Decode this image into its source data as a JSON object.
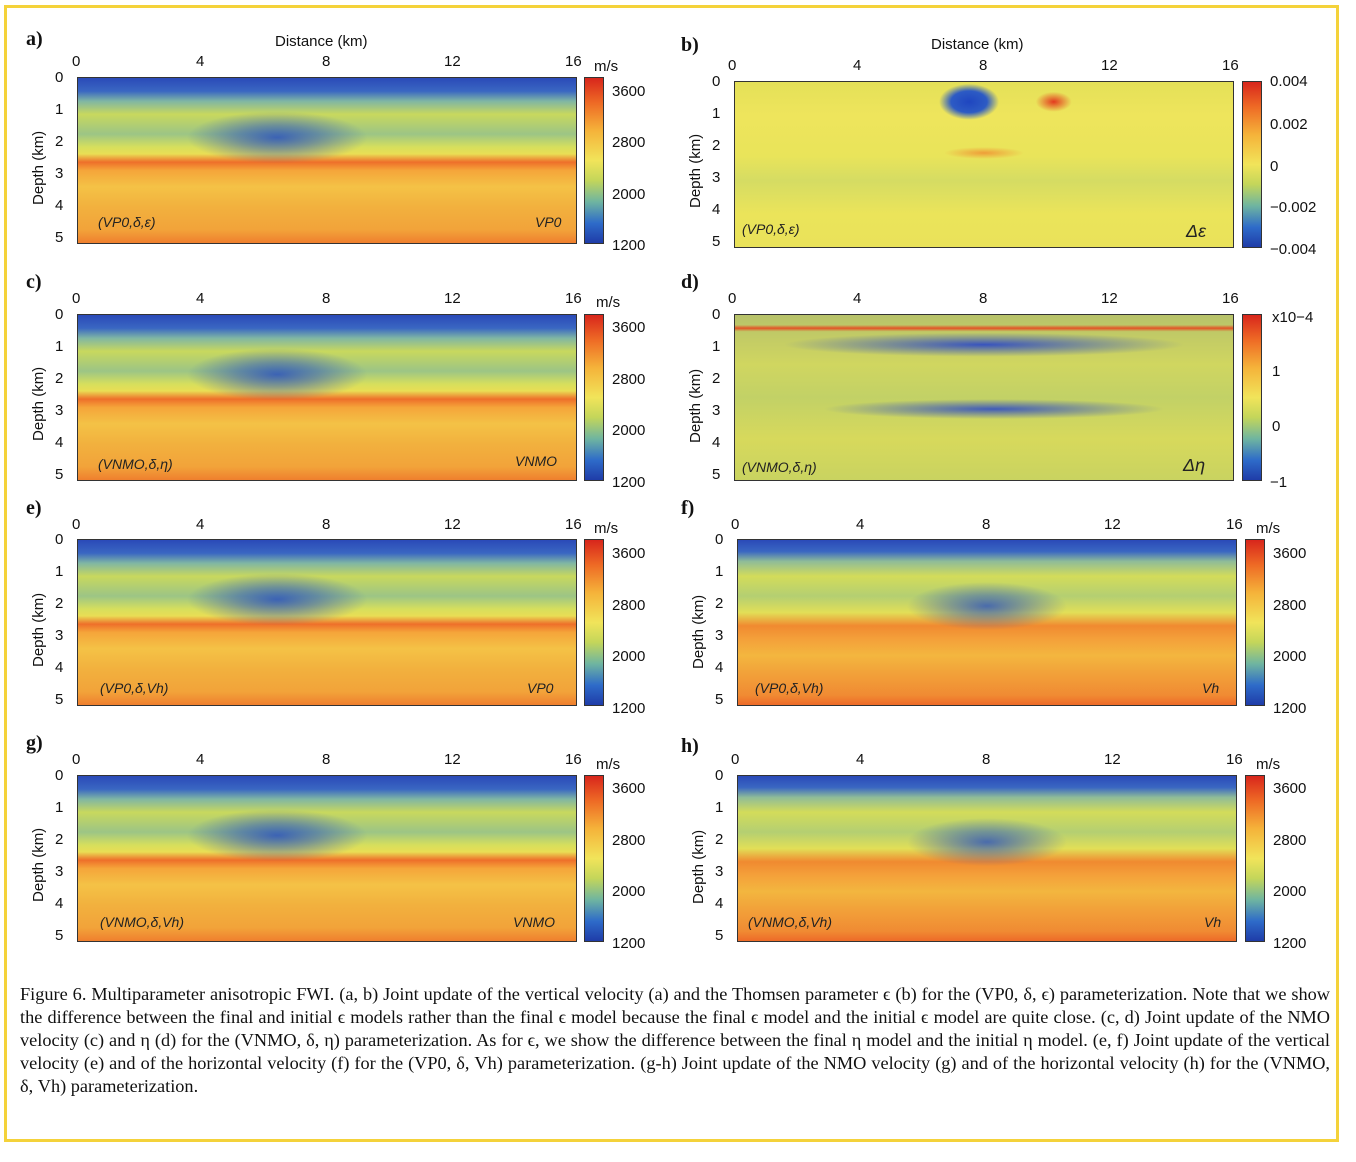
{
  "axes": {
    "distance_title": "Distance (km)",
    "depth_title": "Depth (km)",
    "x_ticks": [
      "0",
      "4",
      "8",
      "12",
      "16"
    ],
    "y_ticks": [
      "0",
      "1",
      "2",
      "3",
      "4",
      "5"
    ]
  },
  "velocity_colorbar": {
    "unit": "m/s",
    "ticks": [
      "3600",
      "2800",
      "2000",
      "1200"
    ]
  },
  "panels": {
    "a": {
      "label": "a)",
      "param": "(VP0,δ,ε)",
      "quantity": "VP0"
    },
    "b": {
      "label": "b)",
      "param": "(VP0,δ,ε)",
      "quantity": "Δε",
      "cb_ticks": [
        "0.004",
        "0.002",
        "0",
        "−0.002",
        "−0.004"
      ]
    },
    "c": {
      "label": "c)",
      "param": "(VNMO,δ,η)",
      "quantity": "VNMO"
    },
    "d": {
      "label": "d)",
      "param": "(VNMO,δ,η)",
      "quantity": "Δη",
      "cb_unit": "x10−4",
      "cb_ticks": [
        "1",
        "0",
        "−1"
      ]
    },
    "e": {
      "label": "e)",
      "param": "(VP0,δ,Vh)",
      "quantity": "VP0"
    },
    "f": {
      "label": "f)",
      "param": "(VP0,δ,Vh)",
      "quantity": "Vh"
    },
    "g": {
      "label": "g)",
      "param": "(VNMO,δ,Vh)",
      "quantity": "VNMO"
    },
    "h": {
      "label": "h)",
      "param": "(VNMO,δ,Vh)",
      "quantity": "Vh"
    }
  },
  "caption": "Figure 6.  Multiparameter anisotropic FWI. (a, b) Joint update of the vertical velocity (a) and the Thomsen parameter ϵ (b) for the (VP0, δ, ϵ) parameterization. Note that we show the difference between the final and initial ϵ models rather than the final ϵ model because the final ϵ model and the initial ϵ model are quite close. (c, d) Joint update of the NMO velocity (c) and η (d) for the (VNMO, δ, η) parameterization. As for ϵ, we show the difference between the final η model and the initial η model. (e, f) Joint update of the vertical velocity (e) and of the horizontal velocity (f) for the (VP0, δ, Vh) parameterization. (g-h) Joint update of the NMO velocity (g) and of the horizontal velocity (h) for the (VNMO, δ, Vh) parameterization."
}
